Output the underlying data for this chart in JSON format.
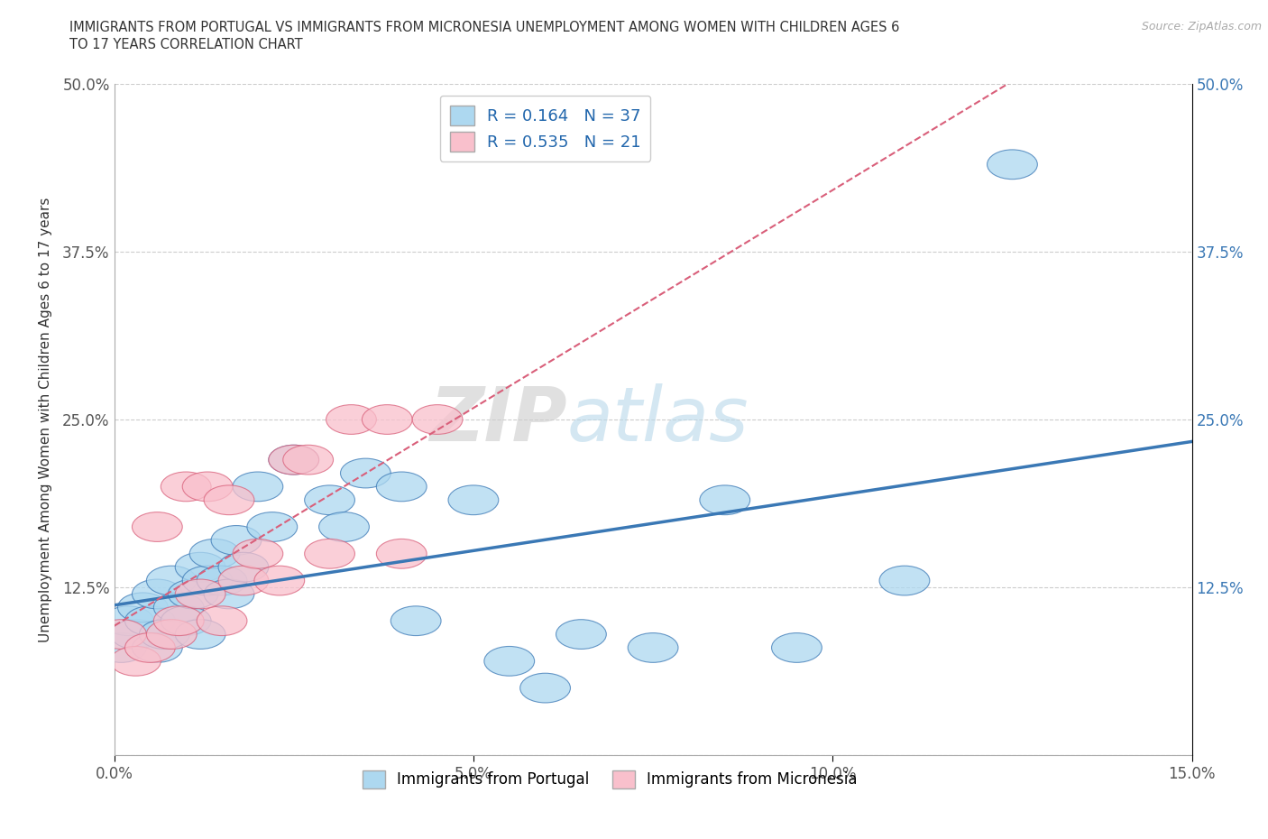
{
  "title_line1": "IMMIGRANTS FROM PORTUGAL VS IMMIGRANTS FROM MICRONESIA UNEMPLOYMENT AMONG WOMEN WITH CHILDREN AGES 6",
  "title_line2": "TO 17 YEARS CORRELATION CHART",
  "source_text": "Source: ZipAtlas.com",
  "ylabel": "Unemployment Among Women with Children Ages 6 to 17 years",
  "xlim": [
    0.0,
    0.15
  ],
  "ylim": [
    0.0,
    0.5
  ],
  "xticks": [
    0.0,
    0.05,
    0.1,
    0.15
  ],
  "xticklabels": [
    "0.0%",
    "5.0%",
    "10.0%",
    "15.0%"
  ],
  "yticks": [
    0.0,
    0.125,
    0.25,
    0.375,
    0.5
  ],
  "yticklabels_left": [
    "",
    "12.5%",
    "25.0%",
    "37.5%",
    "50.0%"
  ],
  "yticklabels_right": [
    "",
    "12.5%",
    "25.0%",
    "37.5%",
    "50.0%"
  ],
  "r_portugal": 0.164,
  "n_portugal": 37,
  "r_micronesia": 0.535,
  "n_micronesia": 21,
  "color_portugal": "#ADD8F0",
  "color_micronesia": "#F9C0CC",
  "line_color_portugal": "#3A78B5",
  "line_color_micronesia": "#D95F7A",
  "legend_label_portugal": "Immigrants from Portugal",
  "legend_label_micronesia": "Immigrants from Micronesia",
  "portugal_x": [
    0.001,
    0.002,
    0.003,
    0.004,
    0.005,
    0.006,
    0.006,
    0.007,
    0.008,
    0.009,
    0.01,
    0.011,
    0.012,
    0.012,
    0.013,
    0.014,
    0.015,
    0.016,
    0.017,
    0.018,
    0.02,
    0.022,
    0.025,
    0.03,
    0.032,
    0.035,
    0.04,
    0.042,
    0.05,
    0.055,
    0.06,
    0.065,
    0.075,
    0.085,
    0.095,
    0.11,
    0.125
  ],
  "portugal_y": [
    0.08,
    0.1,
    0.09,
    0.11,
    0.1,
    0.12,
    0.08,
    0.09,
    0.13,
    0.11,
    0.1,
    0.12,
    0.14,
    0.09,
    0.13,
    0.15,
    0.13,
    0.12,
    0.16,
    0.14,
    0.2,
    0.17,
    0.22,
    0.19,
    0.17,
    0.21,
    0.2,
    0.1,
    0.19,
    0.07,
    0.05,
    0.09,
    0.08,
    0.19,
    0.08,
    0.13,
    0.44
  ],
  "micronesia_x": [
    0.001,
    0.003,
    0.005,
    0.006,
    0.008,
    0.009,
    0.01,
    0.012,
    0.013,
    0.015,
    0.016,
    0.018,
    0.02,
    0.023,
    0.025,
    0.027,
    0.03,
    0.033,
    0.038,
    0.04,
    0.045
  ],
  "micronesia_y": [
    0.09,
    0.07,
    0.08,
    0.17,
    0.09,
    0.1,
    0.2,
    0.12,
    0.2,
    0.1,
    0.19,
    0.13,
    0.15,
    0.13,
    0.22,
    0.22,
    0.15,
    0.25,
    0.25,
    0.15,
    0.25
  ]
}
